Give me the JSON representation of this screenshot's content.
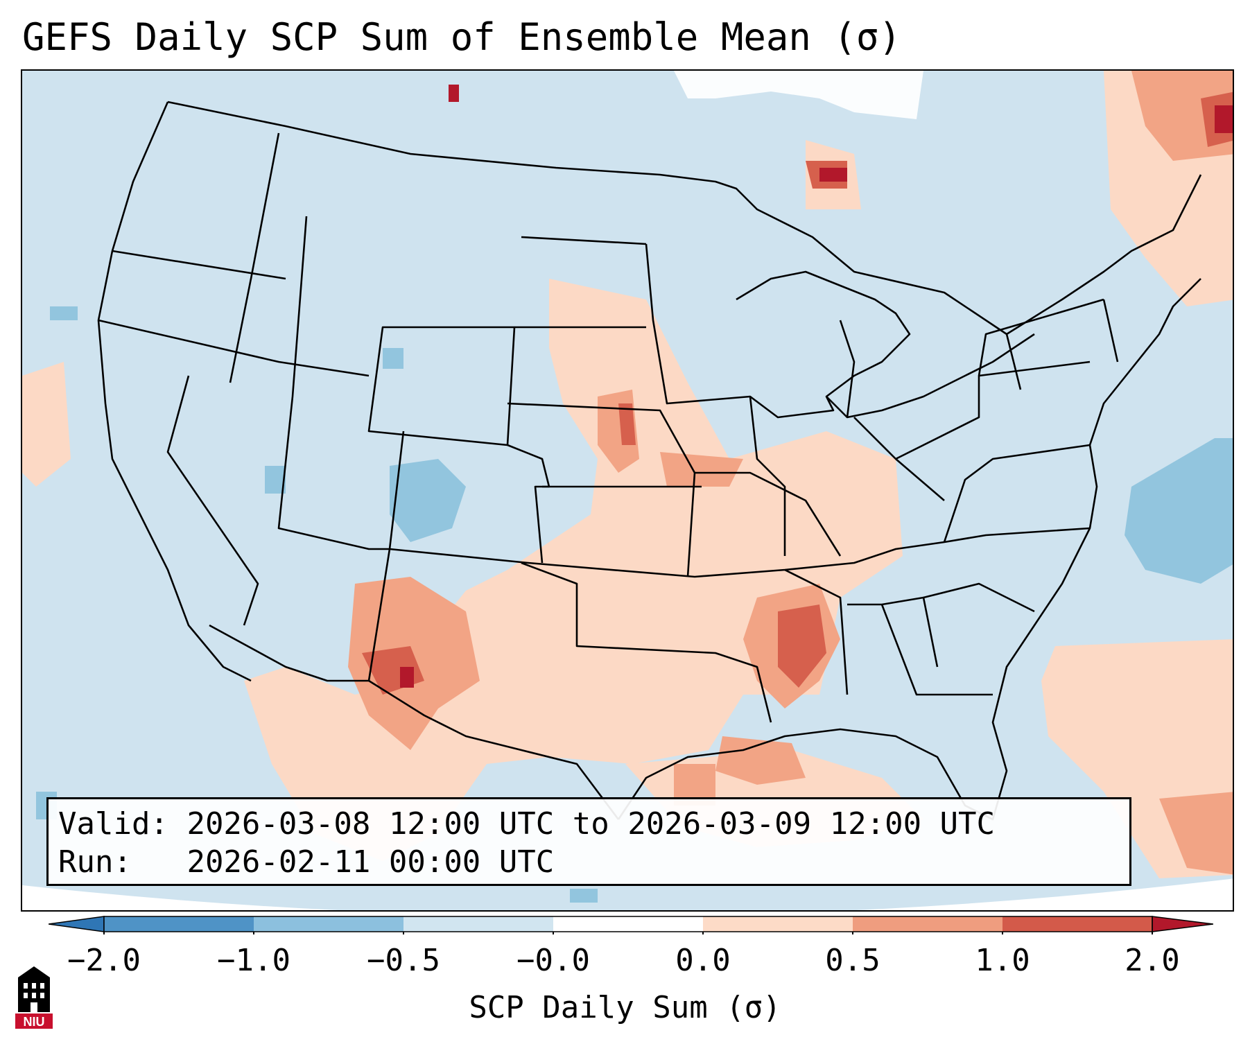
{
  "title": "GEFS Daily SCP Sum of Ensemble Mean (σ)",
  "infobox": {
    "valid_label": "Valid:",
    "valid_value": "2026-03-08 12:00 UTC to 2026-03-09 12:00 UTC",
    "run_label": "Run:",
    "run_value": "2026-02-11 00:00 UTC"
  },
  "colorbar": {
    "label": "SCP Daily Sum (σ)",
    "ticks": [
      "−2.0",
      "−1.0",
      "−0.5",
      "−0.0",
      "0.0",
      "0.5",
      "1.0",
      "2.0"
    ],
    "colors": [
      "#2f76b5",
      "#5aa2d0",
      "#9ccae1",
      "#d3e5f0",
      "#fde4d5",
      "#f7b79a",
      "#e37559",
      "#bf2032",
      "#a50f24"
    ]
  },
  "map": {
    "background_color": "#cfe3ef",
    "ocean_edge_color": "#ffffff",
    "outline_color": "#000000"
  },
  "logo": {
    "text": "NIU",
    "color": "#c8102e"
  }
}
